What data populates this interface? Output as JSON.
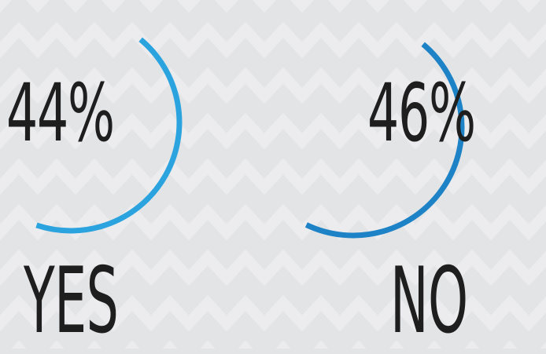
{
  "chart_data": {
    "type": "gauge",
    "items": [
      {
        "label": "YES",
        "percent_text": "44%",
        "value": 44,
        "color": "#2aa3df"
      },
      {
        "label": "NO",
        "percent_text": "46%",
        "value": 46,
        "color": "#1d82c6"
      }
    ]
  },
  "background": {
    "color": "#e3e4e6",
    "pattern": "chevron",
    "pattern_color": "#ececee"
  }
}
